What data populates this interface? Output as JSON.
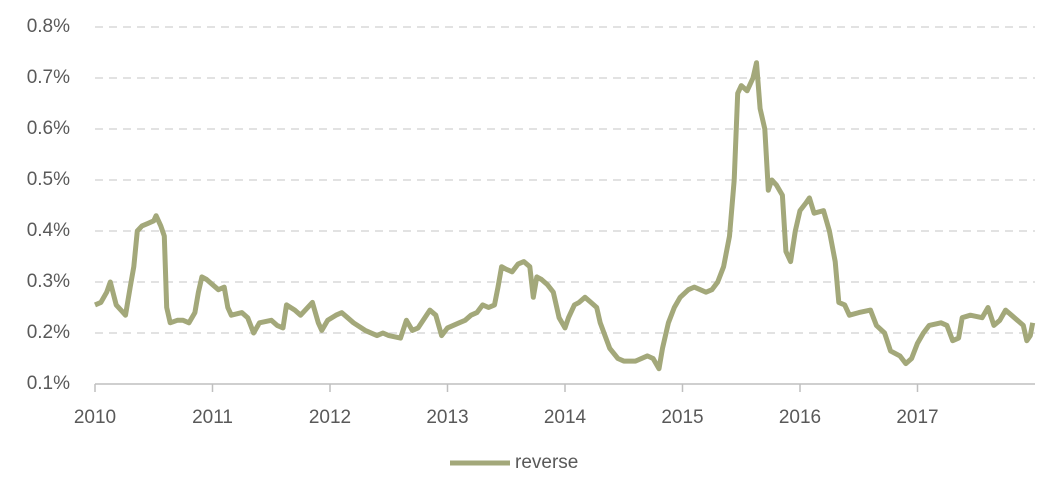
{
  "chart_data": {
    "type": "line",
    "x": [
      2010.0,
      2010.05,
      2010.1,
      2010.13,
      2010.18,
      2010.22,
      2010.26,
      2010.3,
      2010.33,
      2010.36,
      2010.4,
      2010.45,
      2010.5,
      2010.52,
      2010.56,
      2010.59,
      2010.61,
      2010.64,
      2010.7,
      2010.75,
      2010.8,
      2010.85,
      2010.88,
      2010.91,
      2010.95,
      2011.0,
      2011.05,
      2011.1,
      2011.13,
      2011.16,
      2011.25,
      2011.3,
      2011.35,
      2011.4,
      2011.5,
      2011.55,
      2011.6,
      2011.63,
      2011.7,
      2011.75,
      2011.85,
      2011.9,
      2011.93,
      2011.98,
      2012.05,
      2012.1,
      2012.15,
      2012.2,
      2012.3,
      2012.4,
      2012.45,
      2012.5,
      2012.6,
      2012.65,
      2012.7,
      2012.75,
      2012.85,
      2012.9,
      2012.95,
      2013.0,
      2013.1,
      2013.15,
      2013.2,
      2013.25,
      2013.3,
      2013.35,
      2013.4,
      2013.43,
      2013.46,
      2013.5,
      2013.55,
      2013.6,
      2013.65,
      2013.7,
      2013.73,
      2013.76,
      2013.8,
      2013.85,
      2013.9,
      2013.95,
      2014.0,
      2014.03,
      2014.08,
      2014.12,
      2014.17,
      2014.22,
      2014.27,
      2014.3,
      2014.38,
      2014.45,
      2014.5,
      2014.6,
      2014.7,
      2014.75,
      2014.8,
      2014.83,
      2014.88,
      2014.93,
      2014.98,
      2015.05,
      2015.1,
      2015.2,
      2015.25,
      2015.3,
      2015.35,
      2015.4,
      2015.44,
      2015.47,
      2015.5,
      2015.55,
      2015.6,
      2015.63,
      2015.66,
      2015.7,
      2015.73,
      2015.76,
      2015.8,
      2015.85,
      2015.88,
      2015.92,
      2015.96,
      2016.0,
      2016.05,
      2016.08,
      2016.12,
      2016.2,
      2016.25,
      2016.3,
      2016.33,
      2016.38,
      2016.42,
      2016.5,
      2016.6,
      2016.65,
      2016.72,
      2016.77,
      2016.85,
      2016.9,
      2016.95,
      2017.0,
      2017.05,
      2017.1,
      2017.2,
      2017.25,
      2017.3,
      2017.35,
      2017.38,
      2017.45,
      2017.55,
      2017.6,
      2017.65,
      2017.7,
      2017.75,
      2017.8,
      2017.85,
      2017.9,
      2017.93,
      2017.96,
      2017.98
    ],
    "series": [
      {
        "name": "reverse",
        "color": "#a3a87a",
        "values": [
          0.255,
          0.26,
          0.28,
          0.3,
          0.255,
          0.245,
          0.235,
          0.29,
          0.33,
          0.4,
          0.41,
          0.415,
          0.42,
          0.43,
          0.41,
          0.39,
          0.25,
          0.22,
          0.225,
          0.225,
          0.22,
          0.24,
          0.28,
          0.31,
          0.305,
          0.295,
          0.285,
          0.29,
          0.25,
          0.235,
          0.24,
          0.23,
          0.2,
          0.22,
          0.225,
          0.215,
          0.21,
          0.255,
          0.245,
          0.235,
          0.26,
          0.22,
          0.205,
          0.225,
          0.235,
          0.24,
          0.23,
          0.22,
          0.205,
          0.195,
          0.2,
          0.195,
          0.19,
          0.225,
          0.205,
          0.21,
          0.245,
          0.235,
          0.195,
          0.21,
          0.22,
          0.225,
          0.235,
          0.24,
          0.255,
          0.25,
          0.255,
          0.29,
          0.33,
          0.325,
          0.32,
          0.335,
          0.34,
          0.33,
          0.27,
          0.31,
          0.305,
          0.295,
          0.28,
          0.23,
          0.21,
          0.23,
          0.255,
          0.26,
          0.27,
          0.26,
          0.25,
          0.22,
          0.17,
          0.15,
          0.145,
          0.145,
          0.155,
          0.15,
          0.13,
          0.17,
          0.22,
          0.25,
          0.27,
          0.285,
          0.29,
          0.28,
          0.285,
          0.3,
          0.33,
          0.39,
          0.5,
          0.67,
          0.685,
          0.675,
          0.7,
          0.73,
          0.64,
          0.6,
          0.48,
          0.5,
          0.49,
          0.47,
          0.36,
          0.34,
          0.4,
          0.44,
          0.455,
          0.465,
          0.435,
          0.44,
          0.4,
          0.34,
          0.26,
          0.255,
          0.235,
          0.24,
          0.245,
          0.215,
          0.2,
          0.165,
          0.155,
          0.14,
          0.15,
          0.18,
          0.2,
          0.215,
          0.22,
          0.215,
          0.185,
          0.19,
          0.23,
          0.235,
          0.23,
          0.25,
          0.215,
          0.225,
          0.245,
          0.235,
          0.225,
          0.215,
          0.185,
          0.195,
          0.22
        ]
      }
    ],
    "xlim": [
      2010,
      2018
    ],
    "xticks": [
      2010,
      2011,
      2012,
      2013,
      2014,
      2015,
      2016,
      2017
    ],
    "ylim": [
      0.1,
      0.8
    ],
    "yticks": [
      {
        "value": 0.1,
        "label": "0.1%"
      },
      {
        "value": 0.2,
        "label": "0.2%"
      },
      {
        "value": 0.3,
        "label": "0.3%"
      },
      {
        "value": 0.4,
        "label": "0.4%"
      },
      {
        "value": 0.5,
        "label": "0.5%"
      },
      {
        "value": 0.6,
        "label": "0.6%"
      },
      {
        "value": 0.7,
        "label": "0.7%"
      },
      {
        "value": 0.8,
        "label": "0.8%"
      }
    ],
    "grid": true,
    "legend": "bottom"
  }
}
